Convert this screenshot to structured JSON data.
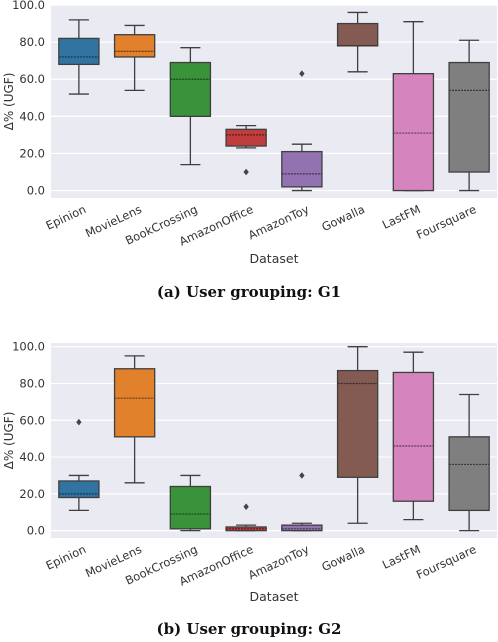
{
  "figure": {
    "captions": [
      "(a) User grouping: G1",
      "(b) User grouping: G2"
    ]
  },
  "chart_data": [
    {
      "type": "box",
      "title": "",
      "xlabel": "Dataset",
      "ylabel": "Δ% (UGF)",
      "ylim": [
        -4,
        100
      ],
      "yticks": [
        0,
        20,
        40,
        60,
        80,
        100
      ],
      "yticklabels": [
        "0.0",
        "20.0",
        "40.0",
        "60.0",
        "80.0",
        "100.0"
      ],
      "grid": true,
      "background": "#eaeaf2",
      "categories": [
        "Epinion",
        "MovieLens",
        "BookCrossing",
        "AmazonOffice",
        "AmazonToy",
        "Gowalla",
        "LastFM",
        "Foursquare"
      ],
      "colors": [
        "#3274a1",
        "#e1812c",
        "#3a923a",
        "#c03d3e",
        "#9372b2",
        "#845b53",
        "#d684bd",
        "#7f7f7f"
      ],
      "boxes": [
        {
          "whisker_low": 52,
          "q1": 68,
          "median": 72,
          "q3": 82,
          "whisker_high": 92,
          "outliers": []
        },
        {
          "whisker_low": 54,
          "q1": 72,
          "median": 75,
          "q3": 84,
          "whisker_high": 89,
          "outliers": []
        },
        {
          "whisker_low": 14,
          "q1": 40,
          "median": 60,
          "q3": 69,
          "whisker_high": 77,
          "outliers": []
        },
        {
          "whisker_low": 23,
          "q1": 24,
          "median": 30,
          "q3": 33,
          "whisker_high": 35,
          "outliers": [
            10
          ]
        },
        {
          "whisker_low": 0,
          "q1": 2,
          "median": 9,
          "q3": 21,
          "whisker_high": 25,
          "outliers": [
            63
          ]
        },
        {
          "whisker_low": 64,
          "q1": 78,
          "median": 78,
          "q3": 90,
          "whisker_high": 96,
          "outliers": []
        },
        {
          "whisker_low": 0,
          "q1": 0,
          "median": 31,
          "q3": 63,
          "whisker_high": 91,
          "outliers": []
        },
        {
          "whisker_low": 0,
          "q1": 10,
          "median": 54,
          "q3": 69,
          "whisker_high": 81,
          "outliers": []
        }
      ]
    },
    {
      "type": "box",
      "title": "",
      "xlabel": "Dataset",
      "ylabel": "Δ% (UGF)",
      "ylim": [
        -4,
        102
      ],
      "yticks": [
        0,
        20,
        40,
        60,
        80,
        100
      ],
      "yticklabels": [
        "0.0",
        "20.0",
        "40.0",
        "60.0",
        "80.0",
        "100.0"
      ],
      "grid": true,
      "background": "#eaeaf2",
      "categories": [
        "Epinion",
        "MovieLens",
        "BookCrossing",
        "AmazonOffice",
        "AmazonToy",
        "Gowalla",
        "LastFM",
        "Foursquare"
      ],
      "colors": [
        "#3274a1",
        "#e1812c",
        "#3a923a",
        "#c03d3e",
        "#9372b2",
        "#845b53",
        "#d684bd",
        "#7f7f7f"
      ],
      "boxes": [
        {
          "whisker_low": 11,
          "q1": 18,
          "median": 20,
          "q3": 27,
          "whisker_high": 30,
          "outliers": [
            59
          ]
        },
        {
          "whisker_low": 26,
          "q1": 51,
          "median": 72,
          "q3": 88,
          "whisker_high": 95,
          "outliers": []
        },
        {
          "whisker_low": 0,
          "q1": 1,
          "median": 9,
          "q3": 24,
          "whisker_high": 30,
          "outliers": []
        },
        {
          "whisker_low": 0,
          "q1": 0,
          "median": 1,
          "q3": 2,
          "whisker_high": 3,
          "outliers": [
            13
          ]
        },
        {
          "whisker_low": 0,
          "q1": 0,
          "median": 1,
          "q3": 3,
          "whisker_high": 4,
          "outliers": [
            30
          ]
        },
        {
          "whisker_low": 4,
          "q1": 29,
          "median": 80,
          "q3": 87,
          "whisker_high": 100,
          "outliers": []
        },
        {
          "whisker_low": 6,
          "q1": 16,
          "median": 46,
          "q3": 86,
          "whisker_high": 97,
          "outliers": []
        },
        {
          "whisker_low": 0,
          "q1": 11,
          "median": 36,
          "q3": 51,
          "whisker_high": 74,
          "outliers": []
        }
      ]
    }
  ]
}
